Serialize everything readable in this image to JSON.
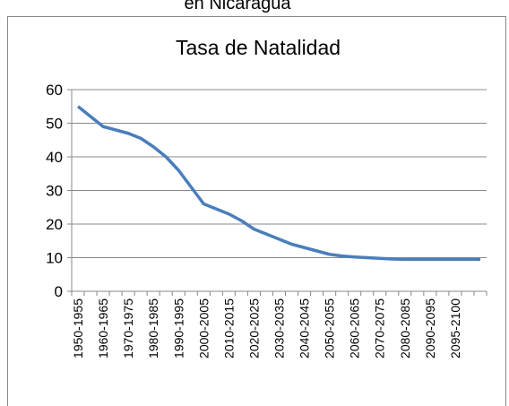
{
  "heading": "en Nicaragua",
  "chart_data": {
    "type": "line",
    "title": "Tasa de Natalidad",
    "categories": [
      "1950-1955",
      null,
      "1960-1965",
      null,
      "1970-1975",
      null,
      "1980-1985",
      null,
      "1990-1995",
      null,
      "2000-2005",
      null,
      "2010-2015",
      null,
      "2020-2025",
      null,
      "2030-2035",
      null,
      "2040-2045",
      null,
      "2050-2055",
      null,
      "2060-2065",
      null,
      "2070-2075",
      null,
      "2080-2085",
      null,
      "2090-2095",
      null,
      "2095-2100",
      null,
      null
    ],
    "series": [
      {
        "name": "Tasa de Natalidad",
        "color": "#4a7ebb",
        "values": [
          55,
          52,
          49,
          48,
          47,
          45.5,
          43,
          40,
          36,
          31,
          26,
          24.5,
          23,
          21,
          18.5,
          17,
          15.5,
          14,
          13,
          12,
          11,
          10.5,
          10.2,
          10,
          9.8,
          9.6,
          9.5,
          9.5,
          9.5,
          9.5,
          9.5,
          9.5,
          9.5
        ]
      }
    ],
    "ylim": [
      0,
      60
    ],
    "yticks": [
      0,
      10,
      20,
      30,
      40,
      50,
      60
    ],
    "grid": true
  }
}
